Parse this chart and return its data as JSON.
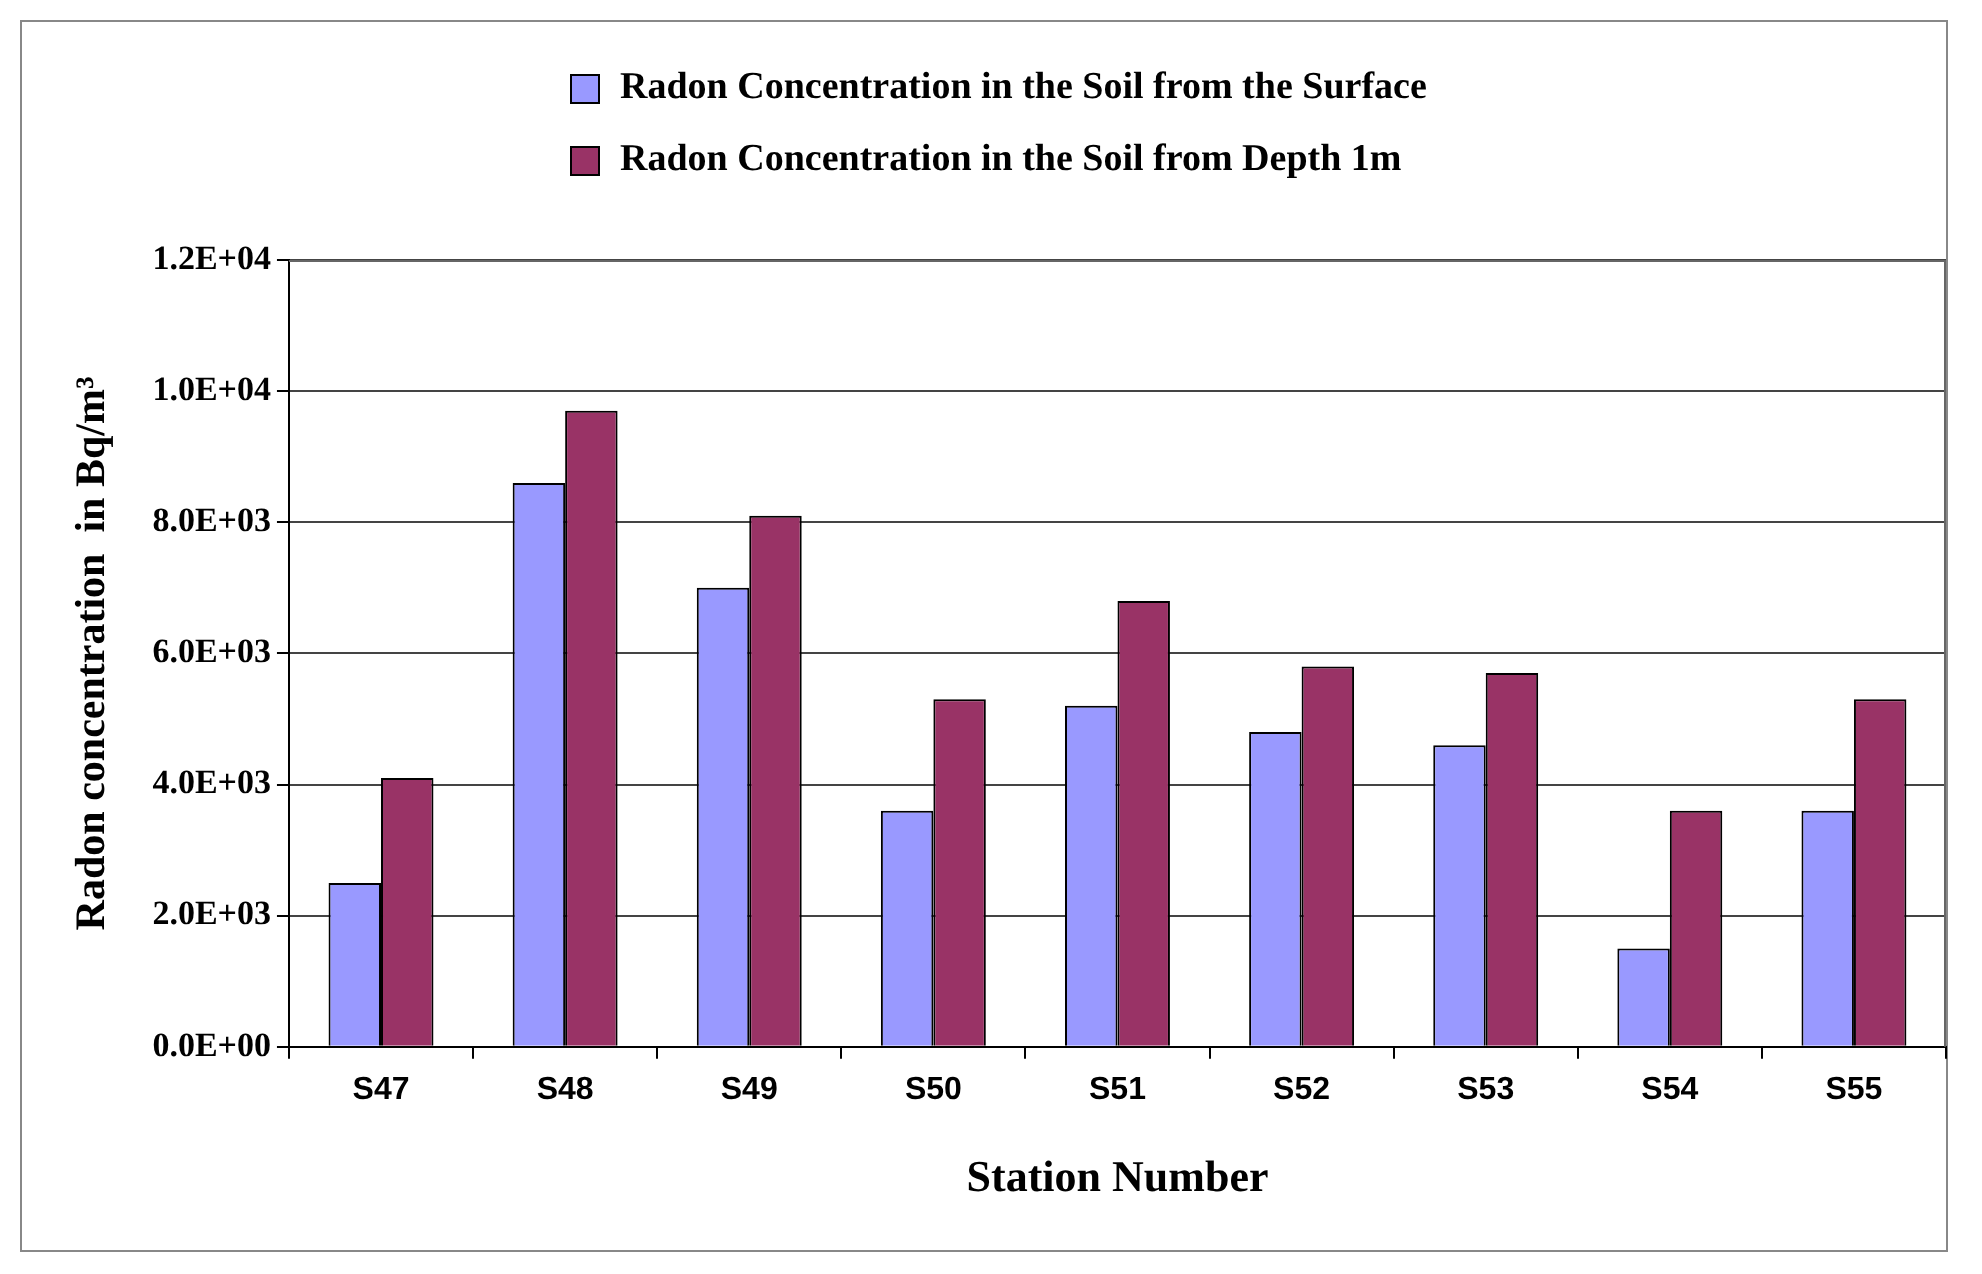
{
  "chart_data": {
    "type": "bar",
    "xlabel": "Station Number",
    "ylabel": "Radon concentration  in Bq/m³",
    "categories": [
      "S47",
      "S48",
      "S49",
      "S50",
      "S51",
      "S52",
      "S53",
      "S54",
      "S55"
    ],
    "series": [
      {
        "name": "Radon Concentration in the Soil from the Surface",
        "color": "#9999ff",
        "values": [
          2500,
          8600,
          7000,
          3600,
          5200,
          4800,
          4600,
          1500,
          3600
        ]
      },
      {
        "name": "Radon Concentration in the Soil from Depth 1m",
        "color": "#993366",
        "values": [
          4100,
          9700,
          8100,
          5300,
          6800,
          5800,
          5700,
          3600,
          5300
        ]
      }
    ],
    "ylim": [
      0,
      12000
    ],
    "yticks": [
      {
        "value": 0,
        "label": "0.0E+00"
      },
      {
        "value": 2000,
        "label": "2.0E+03"
      },
      {
        "value": 4000,
        "label": "4.0E+03"
      },
      {
        "value": 6000,
        "label": "6.0E+03"
      },
      {
        "value": 8000,
        "label": "8.0E+03"
      },
      {
        "value": 10000,
        "label": "1.0E+04"
      },
      {
        "value": 12000,
        "label": "1.2E+04"
      }
    ],
    "grid": "y",
    "legend": "top"
  }
}
